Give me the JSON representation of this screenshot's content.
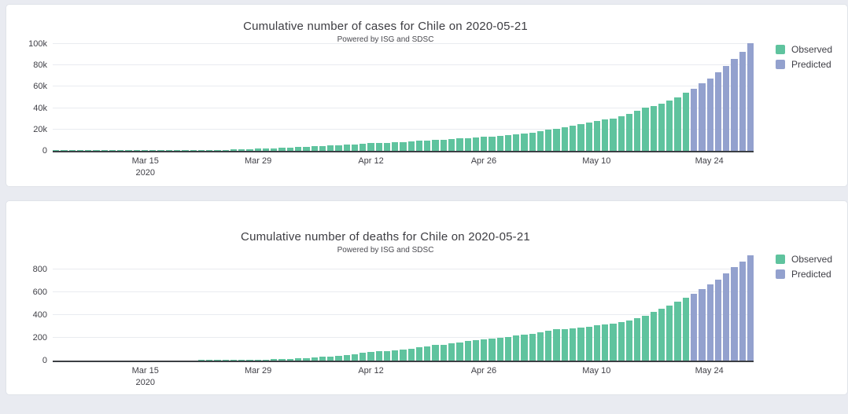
{
  "page": {
    "background": "#e9ebf1",
    "card_background": "#ffffff",
    "card_border": "#e0e3e9"
  },
  "chart_data": [
    {
      "type": "bar",
      "title": "Cumulative number of cases for Chile on 2020-05-21",
      "subtitle": "Powered by ISG and SDSC",
      "xlabel": "",
      "ylabel": "",
      "x_range": [
        "2020-03-04",
        "2020-05-29"
      ],
      "ylim": [
        0,
        100000
      ],
      "grid": true,
      "legend_position": "right",
      "yticks": [
        {
          "value": 0,
          "label": "0"
        },
        {
          "value": 20000,
          "label": "20k"
        },
        {
          "value": 40000,
          "label": "40k"
        },
        {
          "value": 60000,
          "label": "60k"
        },
        {
          "value": 80000,
          "label": "80k"
        },
        {
          "value": 100000,
          "label": "100k"
        }
      ],
      "xticks": [
        {
          "pos": 11,
          "label": "Mar 15",
          "sublabel": "2020"
        },
        {
          "pos": 25,
          "label": "Mar 29"
        },
        {
          "pos": 39,
          "label": "Apr 12"
        },
        {
          "pos": 53,
          "label": "Apr 26"
        },
        {
          "pos": 67,
          "label": "May 10"
        },
        {
          "pos": 81,
          "label": "May 24"
        }
      ],
      "series": [
        {
          "name": "Observed",
          "color": "#5fc39e",
          "start_date": "2020-03-04",
          "end_date": "2020-05-21",
          "values": [
            1,
            1,
            4,
            4,
            7,
            8,
            13,
            17,
            23,
            33,
            43,
            61,
            74,
            155,
            201,
            238,
            342,
            434,
            537,
            632,
            746,
            922,
            1142,
            1306,
            1610,
            1909,
            2139,
            2449,
            2738,
            3031,
            3404,
            3737,
            4161,
            4471,
            4815,
            5116,
            5546,
            5972,
            6501,
            6927,
            7213,
            7525,
            7917,
            8273,
            8807,
            9252,
            9730,
            10088,
            10507,
            10832,
            11296,
            11812,
            12306,
            12858,
            13331,
            13813,
            14365,
            14885,
            16023,
            17008,
            18435,
            19663,
            20643,
            22016,
            23048,
            24581,
            25972,
            27219,
            28866,
            30063,
            31721,
            34381,
            37040,
            39542,
            41428,
            43781,
            46059,
            49579,
            53617
          ]
        },
        {
          "name": "Predicted",
          "color": "#93a1ce",
          "start_date": "2020-05-22",
          "end_date": "2020-05-29",
          "values": [
            57600,
            62100,
            67000,
            72600,
            78300,
            84800,
            91600,
            99100
          ]
        }
      ]
    },
    {
      "type": "bar",
      "title": "Cumulative number of deaths for Chile on 2020-05-21",
      "subtitle": "Powered by ISG and SDSC",
      "xlabel": "",
      "ylabel": "",
      "x_range": [
        "2020-03-04",
        "2020-05-29"
      ],
      "ylim": [
        0,
        920
      ],
      "grid": true,
      "legend_position": "right",
      "yticks": [
        {
          "value": 0,
          "label": "0"
        },
        {
          "value": 200,
          "label": "200"
        },
        {
          "value": 400,
          "label": "400"
        },
        {
          "value": 600,
          "label": "600"
        },
        {
          "value": 800,
          "label": "800"
        }
      ],
      "xticks": [
        {
          "pos": 11,
          "label": "Mar 15",
          "sublabel": "2020"
        },
        {
          "pos": 25,
          "label": "Mar 29"
        },
        {
          "pos": 39,
          "label": "Apr 12"
        },
        {
          "pos": 53,
          "label": "Apr 26"
        },
        {
          "pos": 67,
          "label": "May 10"
        },
        {
          "pos": 81,
          "label": "May 24"
        }
      ],
      "series": [
        {
          "name": "Observed",
          "color": "#5fc39e",
          "start_date": "2020-03-04",
          "end_date": "2020-05-21",
          "values": [
            0,
            0,
            0,
            0,
            0,
            0,
            0,
            0,
            0,
            0,
            0,
            0,
            0,
            0,
            0,
            0,
            0,
            0,
            1,
            2,
            2,
            3,
            4,
            4,
            5,
            6,
            8,
            12,
            12,
            16,
            18,
            22,
            27,
            34,
            37,
            43,
            48,
            57,
            65,
            73,
            80,
            82,
            92,
            94,
            105,
            116,
            126,
            133,
            139,
            147,
            160,
            168,
            174,
            181,
            189,
            198,
            207,
            216,
            227,
            234,
            247,
            260,
            270,
            275,
            281,
            285,
            294,
            304,
            312,
            323,
            335,
            346,
            368,
            390,
            421,
            450,
            478,
            509,
            544
          ]
        },
        {
          "name": "Predicted",
          "color": "#93a1ce",
          "start_date": "2020-05-22",
          "end_date": "2020-05-29",
          "values": [
            582,
            622,
            662,
            704,
            754,
            810,
            858,
            914
          ]
        }
      ]
    }
  ]
}
